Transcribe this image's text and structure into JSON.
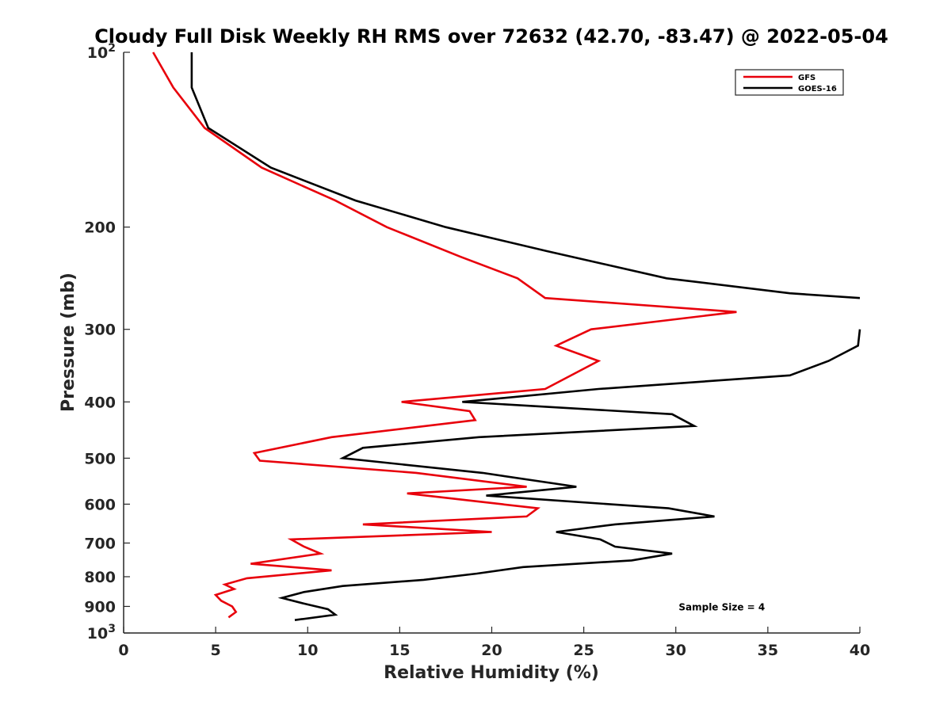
{
  "chart_data": {
    "type": "line",
    "title": "Cloudy Full Disk Weekly RH RMS over 72632 (42.70, -83.47) @ 2022-05-04",
    "xlabel": "Relative Humidity (%)",
    "ylabel": "Pressure (mb)",
    "xlim": [
      0,
      40
    ],
    "ylim": [
      100,
      1000
    ],
    "y_scale": "log",
    "y_reversed": true,
    "grid": false,
    "legend_position": "top-right",
    "x_ticks": [
      0,
      5,
      10,
      15,
      20,
      25,
      30,
      35,
      40
    ],
    "x_tick_labels": [
      "0",
      "5",
      "10",
      "15",
      "20",
      "25",
      "30",
      "35",
      "40"
    ],
    "y_ticks": [
      100,
      200,
      300,
      400,
      500,
      600,
      700,
      800,
      900,
      1000
    ],
    "y_tick_labels": [
      {
        "base": "10",
        "exp": "2"
      },
      {
        "base": "200",
        "exp": ""
      },
      {
        "base": "300",
        "exp": ""
      },
      {
        "base": "400",
        "exp": ""
      },
      {
        "base": "500",
        "exp": ""
      },
      {
        "base": "600",
        "exp": ""
      },
      {
        "base": "700",
        "exp": ""
      },
      {
        "base": "800",
        "exp": ""
      },
      {
        "base": "900",
        "exp": ""
      },
      {
        "base": "10",
        "exp": "3"
      }
    ],
    "series": [
      {
        "name": "GFS",
        "color": "#e8000b",
        "x": [
          1.6,
          2.7,
          4.4,
          7.5,
          11.5,
          14.3,
          18.3,
          21.4,
          22.9,
          33.3,
          25.4,
          23.5,
          25.8,
          22.9,
          15.1,
          18.8,
          19.1,
          11.3,
          7.1,
          7.4,
          15.9,
          21.9,
          15.4,
          22.5,
          21.9,
          13.0,
          20.0,
          9.1,
          9.8,
          10.7,
          6.9,
          11.3,
          6.7,
          5.5,
          6.0,
          5.0,
          5.3,
          5.9,
          6.1,
          5.7
        ],
        "y": [
          100,
          115,
          135,
          158,
          180,
          200,
          225,
          245,
          265,
          280,
          300,
          320,
          340,
          380,
          400,
          415,
          430,
          460,
          490,
          505,
          530,
          560,
          575,
          610,
          630,
          650,
          670,
          690,
          710,
          730,
          760,
          780,
          805,
          825,
          840,
          860,
          880,
          900,
          920,
          940
        ]
      },
      {
        "name": "GOES-16",
        "color": "#000000",
        "x": [
          3.7,
          3.7,
          4.6,
          8.0,
          12.6,
          17.5,
          23.0,
          29.5,
          36.2,
          40.0,
          null,
          40.0,
          39.9,
          38.3,
          36.2,
          25.8,
          18.4,
          29.8,
          31.0,
          19.3,
          13.0,
          11.9,
          19.5,
          24.6,
          19.7,
          29.6,
          32.1,
          26.7,
          23.5,
          25.9,
          26.7,
          29.8,
          27.6,
          21.7,
          19.2,
          16.3,
          11.9,
          9.8,
          8.6,
          9.8,
          11.1,
          11.5,
          9.3
        ],
        "y": [
          100,
          115,
          135,
          158,
          180,
          200,
          220,
          245,
          260,
          265,
          null,
          300,
          320,
          340,
          360,
          380,
          400,
          420,
          440,
          460,
          480,
          500,
          530,
          560,
          580,
          610,
          630,
          650,
          670,
          690,
          710,
          730,
          750,
          770,
          790,
          810,
          830,
          850,
          870,
          890,
          910,
          930,
          950
        ]
      }
    ],
    "annotations": [
      {
        "text": "Sample Size = 4",
        "x": 32.5,
        "y": 900
      }
    ]
  }
}
